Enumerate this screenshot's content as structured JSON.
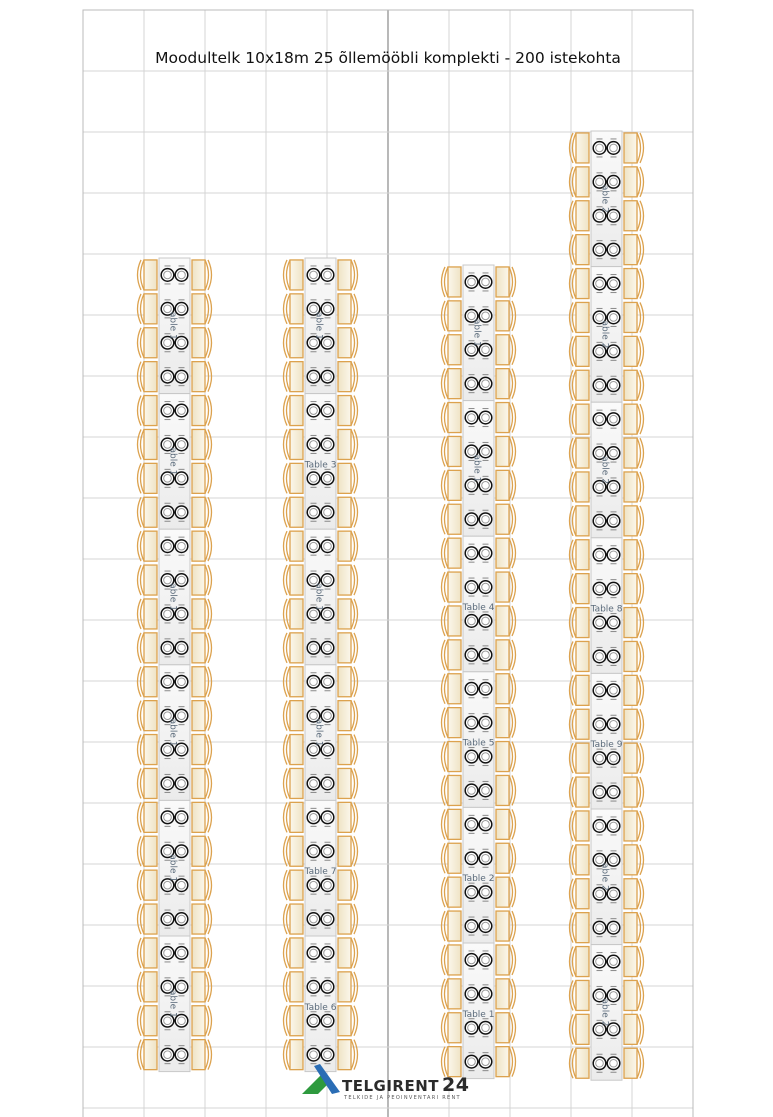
{
  "title": "Moodultelk 10x18m 25 õllemööbli komplekti - 200 istekohta",
  "logo": {
    "brand": "TELGIRENT",
    "number": "24",
    "tagline": "TELKIDE JA PEOINVENTARI RENT"
  },
  "colors": {
    "chair": "#dca24e",
    "chair_fill": "#efe3c4",
    "table": "#f1f1f1",
    "table_border": "#c8c8c8",
    "grid": "#d4d4d4",
    "grid_major": "#8a8a8a",
    "label": "#5a6a7a",
    "logo_green": "#2e9a3e",
    "logo_blue": "#2a6db5"
  },
  "columns": [
    {
      "tables": [
        {
          "label": "able 1",
          "rotated": true
        },
        {
          "label": "able 1",
          "rotated": true
        },
        {
          "label": "able 1",
          "rotated": true
        },
        {
          "label": "able 1",
          "rotated": true
        },
        {
          "label": "able 1",
          "rotated": true
        },
        {
          "label": "able 1",
          "rotated": true
        }
      ]
    },
    {
      "tables": [
        {
          "label": "able 1",
          "rotated": true
        },
        {
          "label": "Table 3",
          "rotated": false
        },
        {
          "label": "able 1",
          "rotated": true
        },
        {
          "label": "able 1",
          "rotated": true
        },
        {
          "label": "Table 7",
          "rotated": false
        },
        {
          "label": "Table 6",
          "rotated": false
        }
      ]
    },
    {
      "tables": [
        {
          "label": "able 1",
          "rotated": true
        },
        {
          "label": "able 1",
          "rotated": true
        },
        {
          "label": "Table 4",
          "rotated": false
        },
        {
          "label": "Table 5",
          "rotated": false
        },
        {
          "label": "Table 2",
          "rotated": false
        },
        {
          "label": "Table 1",
          "rotated": false
        }
      ]
    },
    {
      "tables": [
        {
          "label": "able 2",
          "rotated": true
        },
        {
          "label": "able 2",
          "rotated": true
        },
        {
          "label": "able 2",
          "rotated": true
        },
        {
          "label": "Table 8",
          "rotated": false
        },
        {
          "label": "Table 9",
          "rotated": false
        },
        {
          "label": "able 2",
          "rotated": true
        },
        {
          "label": "able 2",
          "rotated": true
        }
      ]
    }
  ]
}
